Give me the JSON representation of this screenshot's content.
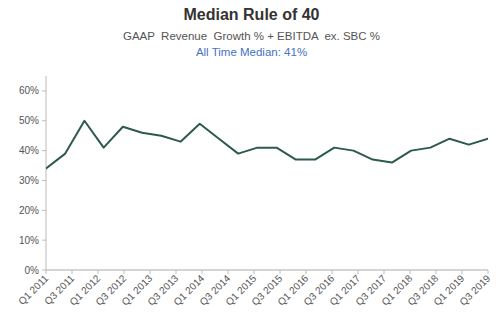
{
  "chart_data": {
    "type": "line",
    "title": "Median Rule of 40",
    "subtitle": [
      "GAAP  Revenue  Growth % + EBITDA  ex. SBC %",
      "All Time Median: 41%"
    ],
    "x": [
      0,
      0.7391304347826086,
      1.4782608695652173,
      2.217391304347826,
      2.9565217391304346,
      3.6956521739130435,
      4.434782608695652,
      5.173913043478261,
      5.913043478260869,
      6.6521739130434785,
      7.391304347826087,
      8.130434782608695,
      8.869565217391305,
      9.608695652173912,
      10.347826086956522,
      11.08695652173913,
      11.826086956521738,
      12.565217391304348,
      13.304347826086957,
      14.043478260869565,
      14.782608695652174,
      15.521739130434783,
      16.26086956521739,
      17
    ],
    "values": [
      34,
      39,
      50,
      41,
      48,
      46,
      45,
      43,
      49,
      44,
      39,
      41,
      41,
      37,
      37,
      41,
      40,
      37,
      36,
      40,
      41,
      44,
      42,
      44
    ],
    "color": "#2d5a4e",
    "xlim": [
      0,
      17
    ],
    "xticks": [
      {
        "value": 0,
        "label": "Q1 2011"
      },
      {
        "value": 1,
        "label": "Q3 2011"
      },
      {
        "value": 2,
        "label": "Q1 2012"
      },
      {
        "value": 3,
        "label": "Q3 2012"
      },
      {
        "value": 4,
        "label": "Q1 2013"
      },
      {
        "value": 5,
        "label": "Q3 2013"
      },
      {
        "value": 6,
        "label": "Q1 2014"
      },
      {
        "value": 7,
        "label": "Q3 2014"
      },
      {
        "value": 8,
        "label": "Q1 2015"
      },
      {
        "value": 9,
        "label": "Q3 2015"
      },
      {
        "value": 10,
        "label": "Q1 2016"
      },
      {
        "value": 11,
        "label": "Q3 2016"
      },
      {
        "value": 12,
        "label": "Q1 2017"
      },
      {
        "value": 13,
        "label": "Q3 2017"
      },
      {
        "value": 14,
        "label": "Q1 2018"
      },
      {
        "value": 15,
        "label": "Q3 2018"
      },
      {
        "value": 16,
        "label": "Q1 2019"
      },
      {
        "value": 17,
        "label": "Q3 2019"
      }
    ],
    "ylim": [
      0,
      65
    ],
    "yticks": [
      {
        "value": 0,
        "label": "0%"
      },
      {
        "value": 10,
        "label": "10%"
      },
      {
        "value": 20,
        "label": "20%"
      },
      {
        "value": 30,
        "label": "30%"
      },
      {
        "value": 40,
        "label": "40%"
      },
      {
        "value": 50,
        "label": "50%"
      },
      {
        "value": 60,
        "label": "60%"
      }
    ],
    "grid": false
  }
}
